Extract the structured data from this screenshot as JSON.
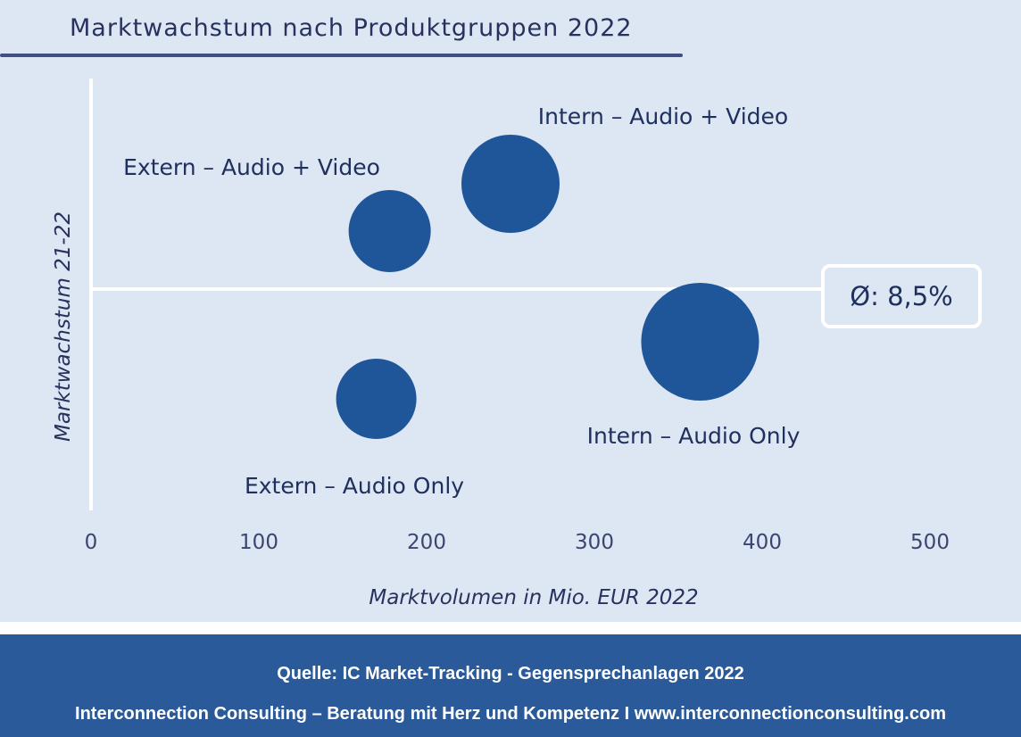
{
  "title": "Marktwachstum nach Produktgruppen 2022",
  "average_label": "Ø: 8,5%",
  "footer": {
    "source": "Quelle: IC Market-Tracking - Gegensprechanlagen 2022",
    "company": "Interconnection Consulting – Beratung mit Herz und Kompetenz  I  www.interconnectionconsulting.com"
  },
  "colors": {
    "bubble": "#1f5699",
    "background": "#dde6f3",
    "footer": "#2a5a99",
    "text": "#20305e"
  },
  "chart_data": {
    "type": "scatter",
    "subtype": "bubble",
    "xlabel": "Marktvolumen in Mio. EUR 2022",
    "ylabel": "Marktwachstum 21-22",
    "xlim": [
      0,
      500
    ],
    "x_ticks": [
      "0",
      "100",
      "200",
      "300",
      "400",
      "500"
    ],
    "y_ticks_shown": false,
    "grid": false,
    "reference_line": {
      "label": "Ø: 8,5%",
      "y": 8.5
    },
    "points": [
      {
        "label": "Extern – Audio + Video",
        "x": 178,
        "y_relative": "above average",
        "size": 1
      },
      {
        "label": "Intern – Audio + Video",
        "x": 250,
        "y_relative": "above average",
        "size": 1.45
      },
      {
        "label": "Intern – Audio Only",
        "x": 363,
        "y_relative": "below average",
        "size": 2.1
      },
      {
        "label": "Extern – Audio Only",
        "x": 170,
        "y_relative": "below average",
        "size": 0.95
      }
    ]
  }
}
